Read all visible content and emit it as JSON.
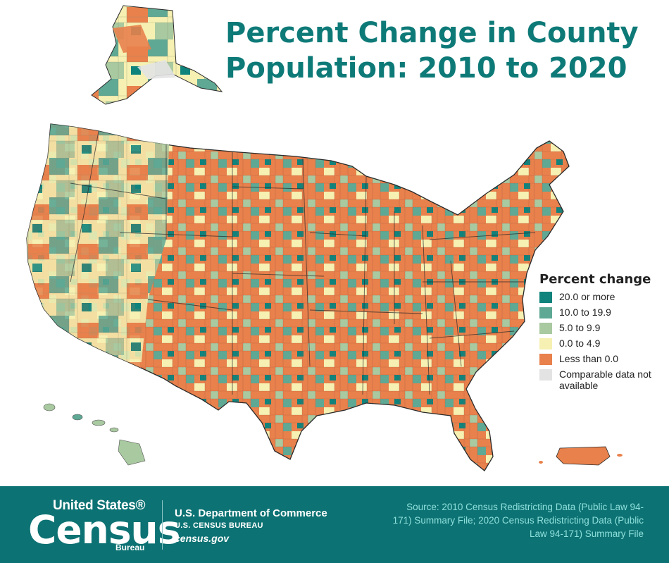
{
  "title": "Percent Change in County Population: 2010 to 2020",
  "legend": {
    "title": "Percent change",
    "items": [
      {
        "label": "20.0 or more",
        "color": "#0f837c"
      },
      {
        "label": "10.0 to 19.9",
        "color": "#5ea894"
      },
      {
        "label": "5.0 to 9.9",
        "color": "#a9c9a0"
      },
      {
        "label": "0.0 to 4.9",
        "color": "#f6f0b2"
      },
      {
        "label": "Less than 0.0",
        "color": "#e8814c"
      },
      {
        "label": "Comparable data not available",
        "color": "#e3e3e3"
      }
    ]
  },
  "footer": {
    "logo_top": "United States®",
    "logo_main": "Census",
    "logo_bottom": "Bureau",
    "department": "U.S. Department of Commerce",
    "bureau": "U.S. CENSUS BUREAU",
    "website": "census.gov",
    "source": "Source: 2010 Census Redistricting Data (Public Law 94-171) Summary File; 2020 Census Redistricting Data (Public Law 94-171) Summary File"
  },
  "colors": {
    "footer_bg": "#0d7273",
    "title": "#0e7a78",
    "boundary": "#2a2a2a"
  }
}
